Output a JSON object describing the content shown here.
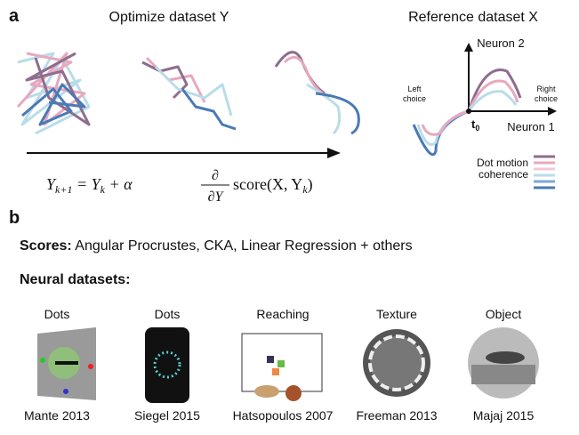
{
  "panel_a": {
    "label": "a",
    "left_title": "Optimize dataset Y",
    "right_title": "Reference dataset X",
    "equation": {
      "lhs": "Y",
      "lhs_sub": "k+1",
      "eq": " = Y",
      "eq_sub": "k",
      "plus": " + α",
      "numerator": "∂",
      "denominator": "∂Y",
      "score": "score(X, Y",
      "score_sub": "k",
      "close": ")"
    },
    "axis_y": "Neuron 2",
    "axis_x": "Neuron 1",
    "left_choice": [
      "Left",
      "choice"
    ],
    "right_choice": [
      "Right",
      "choice"
    ],
    "t0": "t",
    "t0_sub": "0",
    "legend": [
      "Dot motion",
      "coherence"
    ]
  },
  "panel_b": {
    "label": "b",
    "scores_label": "Scores:",
    "scores_text": " Angular Procrustes, CKA, Linear Regression + others",
    "datasets_label": "Neural datasets:",
    "datasets": [
      {
        "type": "Dots",
        "citation": "Mante 2013"
      },
      {
        "type": "Dots",
        "citation": "Siegel 2015"
      },
      {
        "type": "Reaching",
        "citation": "Hatsopoulos 2007"
      },
      {
        "type": "Texture",
        "citation": "Freeman 2013"
      },
      {
        "type": "Object",
        "citation": "Majaj 2015"
      }
    ]
  }
}
